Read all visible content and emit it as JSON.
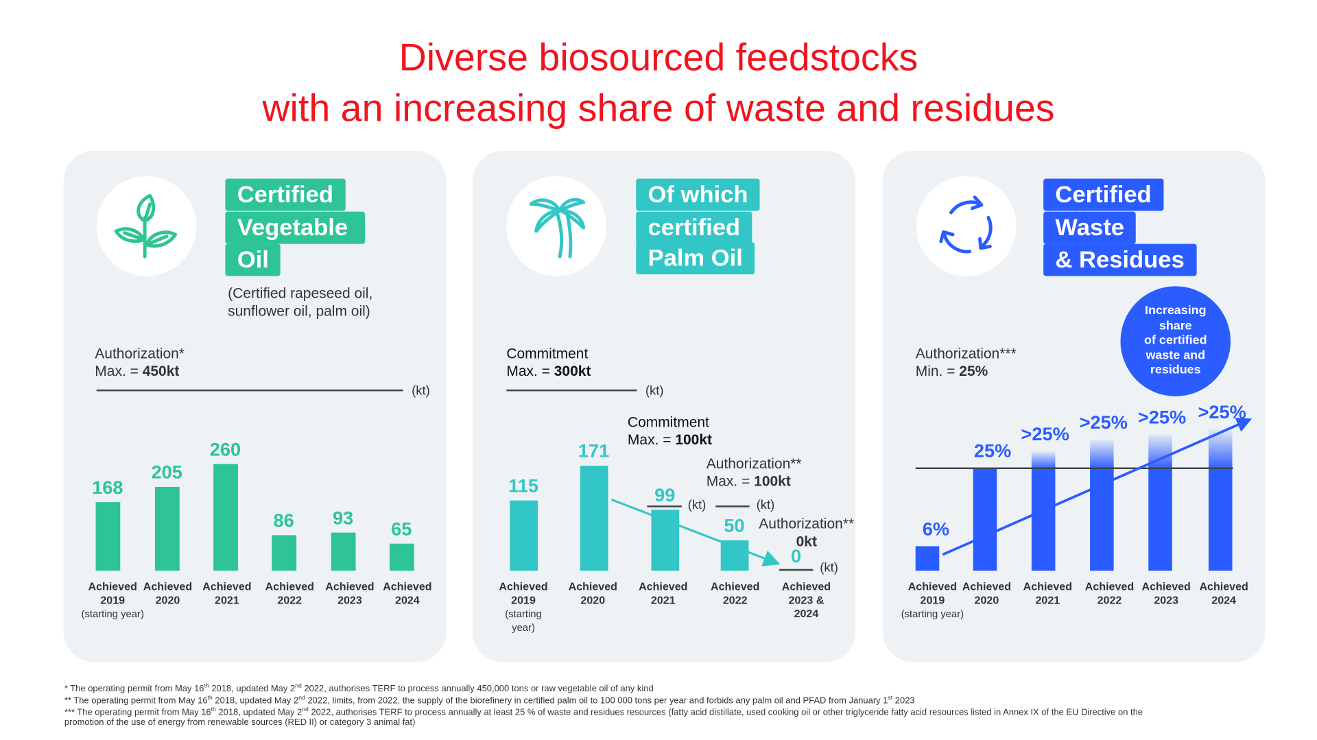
{
  "title": {
    "line1": "Diverse biosourced feedstocks",
    "line2": "with an increasing share of waste and residues"
  },
  "colors": {
    "title": "#f0141e",
    "vegetable": "#2ec495",
    "palm": "#33c6c6",
    "waste": "#2b5cff",
    "panel_bg": "#eef2f5"
  },
  "panels": [
    {
      "icon": "plant-sprout-icon",
      "tag": [
        "Certified",
        "Vegetable",
        "Oil"
      ],
      "subtitle": [
        "(Certified rapeseed oil,",
        "sunflower oil, palm oil)"
      ],
      "limit_label": "Authorization*",
      "limit_prefix": "Max. = ",
      "limit_value": "450kt",
      "unit": "(kt)",
      "bars": [
        {
          "value": 168,
          "label": "168",
          "x1": "Achieved",
          "x2": "2019",
          "x3": "(starting year)"
        },
        {
          "value": 205,
          "label": "205",
          "x1": "Achieved",
          "x2": "2020"
        },
        {
          "value": 260,
          "label": "260",
          "x1": "Achieved",
          "x2": "2021"
        },
        {
          "value": 86,
          "label": "86",
          "x1": "Achieved",
          "x2": "2022"
        },
        {
          "value": 93,
          "label": "93",
          "x1": "Achieved",
          "x2": "2023"
        },
        {
          "value": 65,
          "label": "65",
          "x1": "Achieved",
          "x2": "2024"
        }
      ]
    },
    {
      "icon": "palm-tree-icon",
      "tag": [
        "Of which",
        "certified",
        "Palm Oil"
      ],
      "limit_label": "Commitment",
      "limit_prefix": "Max. = ",
      "limit_value": "300kt",
      "unit": "(kt)",
      "annotations": {
        "commitment": {
          "label": "Commitment",
          "prefix": "Max. = ",
          "value": "100kt",
          "unit": "(kt)"
        },
        "authorization": {
          "label": "Authorization**",
          "prefix": "Max. = ",
          "value": "100kt",
          "unit": "(kt)"
        },
        "authorization_zero": {
          "label": "Authorization**",
          "value": "0kt",
          "unit": "(kt)"
        }
      },
      "bars": [
        {
          "value": 115,
          "label": "115",
          "x1": "Achieved",
          "x2": "2019",
          "x3": "(starting",
          "x4": "year)"
        },
        {
          "value": 171,
          "label": "171",
          "x1": "Achieved",
          "x2": "2020"
        },
        {
          "value": 99,
          "label": "99",
          "x1": "Achieved",
          "x2": "2021"
        },
        {
          "value": 50,
          "label": "50",
          "x1": "Achieved",
          "x2": "2022"
        },
        {
          "value": 0,
          "label": "0",
          "x1": "Achieved",
          "x2": "2023 &",
          "x3": "2024"
        }
      ]
    },
    {
      "icon": "recycle-icon",
      "tag": [
        "Certified",
        "Waste",
        "& Residues"
      ],
      "bubble": "Increasing\nshare\nof certified\nwaste and\nresidues",
      "limit_label": "Authorization***",
      "limit_prefix": "Min. = ",
      "limit_value": "25%",
      "bars": [
        {
          "value": 6,
          "label": "6%",
          "x1": "Achieved",
          "x2": "2019",
          "x3": "(starting year)"
        },
        {
          "value": 25,
          "label": "25%",
          "x1": "Achieved",
          "x2": "2020"
        },
        {
          "value": 25,
          "above": true,
          "label": ">25%",
          "x1": "Achieved",
          "x2": "2021"
        },
        {
          "value": 25,
          "above": true,
          "label": ">25%",
          "x1": "Achieved",
          "x2": "2022"
        },
        {
          "value": 25,
          "above": true,
          "label": ">25%",
          "x1": "Achieved",
          "x2": "2023"
        },
        {
          "value": 25,
          "above": true,
          "label": ">25%",
          "x1": "Achieved",
          "x2": "2024"
        }
      ]
    }
  ],
  "footnotes": [
    [
      {
        "t": "* The operating permit from May 16"
      },
      {
        "sup": "th"
      },
      {
        "t": " 2018, updated May 2"
      },
      {
        "sup": "nd"
      },
      {
        "t": " 2022, authorises TERF to process annually 450,000 tons or raw vegetable oil of any kind"
      }
    ],
    [
      {
        "t": "** The operating permit from May 16"
      },
      {
        "sup": "th"
      },
      {
        "t": " 2018, updated May 2"
      },
      {
        "sup": "nd"
      },
      {
        "t": " 2022, limits, from 2022, the supply of the biorefinery in certified palm oil  to 100 000 tons per year and forbids any palm oil and PFAD from January 1"
      },
      {
        "sup": "st"
      },
      {
        "t": " 2023"
      }
    ],
    [
      {
        "t": "*** The operating permit from May 16"
      },
      {
        "sup": "th"
      },
      {
        "t": " 2018, updated May 2"
      },
      {
        "sup": "nd"
      },
      {
        "t": " 2022, authorises TERF to process annually at least 25 % of waste and residues resources (fatty acid distillate, used cooking oil or other triglyceride fatty acid resources listed in Annex IX of the EU Directive on the"
      }
    ],
    [
      {
        "t": "promotion of the use of energy from renewable sources (RED II) or category 3 animal fat)"
      }
    ]
  ]
}
